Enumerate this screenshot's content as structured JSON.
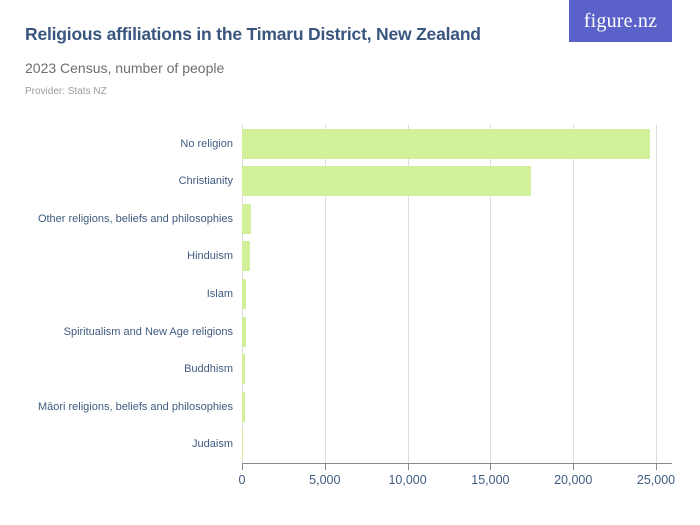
{
  "header": {
    "title": "Religious affiliations in the Timaru District, New Zealand",
    "subtitle": "2023 Census, number of people",
    "provider": "Provider: Stats NZ",
    "logo_text": "figure.nz"
  },
  "colors": {
    "bar": "#d1f099",
    "title": "#3a567f",
    "axis_text": "#3f5c80",
    "subtitle": "#6e6e6e",
    "provider": "#9c9c9c",
    "gridline": "#dcdcdc",
    "axis_line": "#8a8a8a",
    "logo_background": "#5a61c8",
    "logo_text": "#ffffff"
  },
  "chart_data": {
    "type": "bar",
    "orientation": "horizontal",
    "title": "Religious affiliations in the Timaru District, New Zealand",
    "subtitle": "2023 Census, number of people",
    "xlabel": "",
    "ylabel": "",
    "categories": [
      "No religion",
      "Christianity",
      "Other religions, beliefs and philosophies",
      "Hinduism",
      "Islam",
      "Spiritualism and New Age religions",
      "Buddhism",
      "Māori religions, beliefs and philosophies",
      "Judaism"
    ],
    "values": [
      24650,
      17450,
      550,
      480,
      230,
      220,
      180,
      160,
      30
    ],
    "xlim": [
      0,
      26000
    ],
    "xticks": [
      0,
      5000,
      10000,
      15000,
      20000,
      25000
    ],
    "xtick_labels": [
      "0",
      "5,000",
      "10,000",
      "15,000",
      "20,000",
      "25,000"
    ],
    "grid": "vertical",
    "legend": "none"
  }
}
